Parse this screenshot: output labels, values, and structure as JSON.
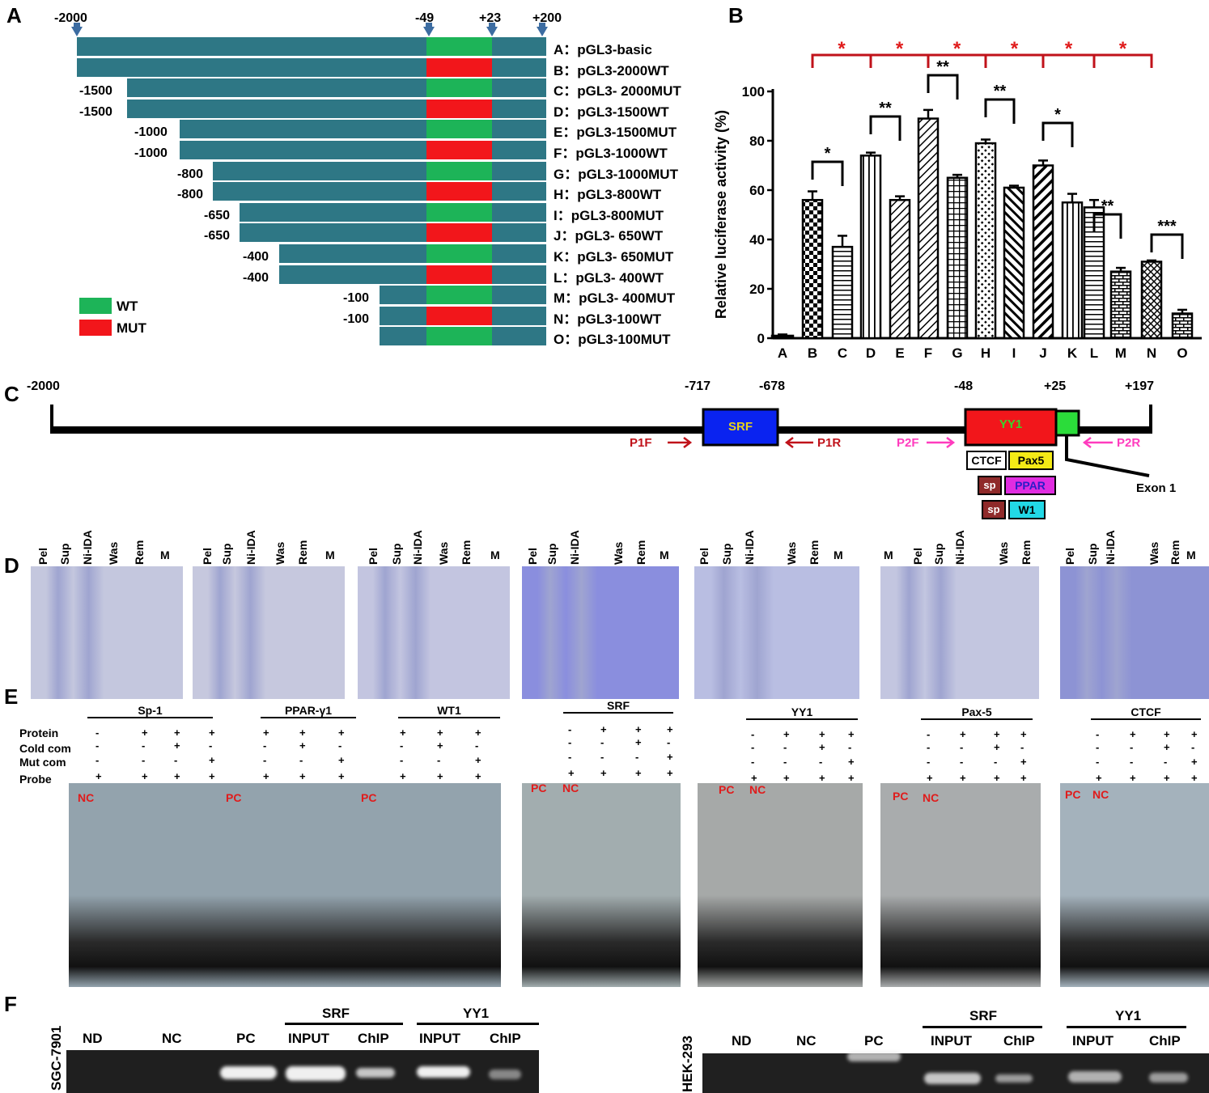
{
  "panels": {
    "A": "A",
    "B": "B",
    "C": "C",
    "D": "D",
    "E": "E",
    "F": "F"
  },
  "panelA": {
    "top_coords": [
      "-2000",
      "-49",
      "+23",
      "+200"
    ],
    "constructs": [
      {
        "id": "A",
        "label": "A：pGL3-basic",
        "start": "",
        "mut": false
      },
      {
        "id": "B",
        "label": "B：pGL3-2000WT",
        "start": "",
        "mut": true
      },
      {
        "id": "C",
        "label": "C：pGL3- 2000MUT",
        "start": "-1500",
        "mut": false
      },
      {
        "id": "D",
        "label": "D：pGL3-1500WT",
        "start": "-1500",
        "mut": true
      },
      {
        "id": "E",
        "label": "E：pGL3-1500MUT",
        "start": "-1000",
        "mut": false
      },
      {
        "id": "F",
        "label": "F：pGL3-1000WT",
        "start": "-1000",
        "mut": true
      },
      {
        "id": "G",
        "label": "G：pGL3-1000MUT",
        "start": "-800",
        "mut": false
      },
      {
        "id": "H",
        "label": "H：pGL3-800WT",
        "start": "-800",
        "mut": true
      },
      {
        "id": "I",
        "label": "I：pGL3-800MUT",
        "start": "-650",
        "mut": false
      },
      {
        "id": "J",
        "label": "J：pGL3- 650WT",
        "start": "-650",
        "mut": true
      },
      {
        "id": "K",
        "label": "K：pGL3- 650MUT",
        "start": "-400",
        "mut": false
      },
      {
        "id": "L",
        "label": "L：pGL3- 400WT",
        "start": "-400",
        "mut": true
      },
      {
        "id": "M",
        "label": "M：pGL3- 400MUT",
        "start": "-100",
        "mut": false
      },
      {
        "id": "N",
        "label": "N：pGL3-100WT",
        "start": "-100",
        "mut": true
      },
      {
        "id": "O",
        "label": "O：pGL3-100MUT",
        "start": "",
        "mut": false
      }
    ],
    "legend": [
      {
        "label": "WT",
        "color": "#1db458"
      },
      {
        "label": "MUT",
        "color": "#f2161b"
      }
    ],
    "bar_color": "#2e7785"
  },
  "chart_data": {
    "type": "bar",
    "ylabel": "Relative luciferase activity (%)",
    "ylim": [
      0,
      100
    ],
    "yticks": [
      "0",
      "20",
      "40",
      "60",
      "80",
      "100"
    ],
    "categories": [
      "A",
      "B",
      "C",
      "D",
      "E",
      "F",
      "G",
      "H",
      "I",
      "J",
      "K",
      "L",
      "M",
      "N",
      "O"
    ],
    "values": [
      1,
      56,
      37,
      74,
      56,
      89,
      65,
      79,
      61,
      70,
      55,
      53,
      27,
      31,
      10
    ],
    "errors": [
      0.5,
      3.5,
      4.5,
      1.2,
      1.5,
      3.5,
      1.2,
      1.5,
      0.8,
      2,
      3.5,
      3,
      1.5,
      0.5,
      1.5
    ],
    "pair_significance": [
      "*",
      "**",
      "**",
      "**",
      "*",
      "**",
      "***"
    ],
    "group_significance": [
      "*",
      "*",
      "*",
      "*",
      "*",
      "*"
    ]
  },
  "panelC": {
    "coords": [
      "-2000",
      "-717",
      "-678",
      "-48",
      "+25",
      "+197"
    ],
    "boxes": {
      "srf": "SRF",
      "yy1": "YY1"
    },
    "primers": [
      "P1F",
      "P1R",
      "P2F",
      "P2R"
    ],
    "factors": [
      "CTCF",
      "Pax5",
      "sp",
      "PPAR",
      "sp",
      "W1"
    ],
    "exon": "Exon 1"
  },
  "panelD": {
    "gels": [
      [
        "Pel",
        "Sup",
        "Ni-IDA",
        "Was",
        "Rem",
        "M"
      ],
      [
        "Pel",
        "Sup",
        "Ni-IDA",
        "Was",
        "Rem",
        "M"
      ],
      [
        "Pel",
        "Sup",
        "Ni-IDA",
        "Was",
        "Rem",
        "M"
      ],
      [
        "Pel",
        "Sup",
        "Ni-IDA",
        "Was",
        "Rem",
        "M"
      ],
      [
        "Pel",
        "Sup",
        "Ni-IDA",
        "Was",
        "Rem",
        "M"
      ],
      [
        "M",
        "Pel",
        "Sup",
        "Ni-IDA",
        "Was",
        "Rem"
      ],
      [
        "Pel",
        "Sup",
        "Ni-IDA",
        "Was",
        "Rem",
        "M"
      ]
    ]
  },
  "panelE": {
    "row_labels": [
      "Protein",
      "Cold com",
      "Mut com",
      "Probe"
    ],
    "titles": [
      "Sp-1",
      "PPAR-γ1",
      "WT1",
      "SRF",
      "YY1",
      "Pax-5",
      "CTCF"
    ],
    "controls": {
      "nc": "NC",
      "pc": "PC"
    },
    "sym_rows": [
      [
        "-",
        "+",
        "+",
        "+"
      ],
      [
        "-",
        "-",
        "+",
        "-"
      ],
      [
        "-",
        "-",
        "-",
        "+"
      ],
      [
        "+",
        "+",
        "+",
        "+"
      ]
    ]
  },
  "panelF": {
    "cells": [
      "SGC-7901",
      "HEK-293"
    ],
    "lanes": [
      "ND",
      "NC",
      "PC",
      "INPUT",
      "ChIP",
      "INPUT",
      "ChIP"
    ],
    "groups": [
      "SRF",
      "YY1"
    ]
  }
}
